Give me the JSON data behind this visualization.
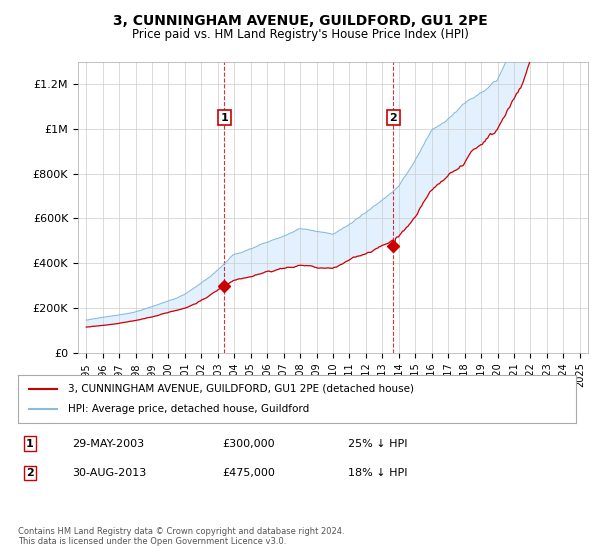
{
  "title": "3, CUNNINGHAM AVENUE, GUILDFORD, GU1 2PE",
  "subtitle": "Price paid vs. HM Land Registry's House Price Index (HPI)",
  "legend_line1": "3, CUNNINGHAM AVENUE, GUILDFORD, GU1 2PE (detached house)",
  "legend_line2": "HPI: Average price, detached house, Guildford",
  "annotation1_label": "1",
  "annotation1_date": "29-MAY-2003",
  "annotation1_price": "£300,000",
  "annotation1_hpi": "25% ↓ HPI",
  "annotation1_year": 2003.4,
  "annotation1_value": 300000,
  "annotation2_label": "2",
  "annotation2_date": "30-AUG-2013",
  "annotation2_price": "£475,000",
  "annotation2_hpi": "18% ↓ HPI",
  "annotation2_year": 2013.66,
  "annotation2_value": 475000,
  "price_color": "#cc0000",
  "hpi_color": "#88bbdd",
  "shading_color": "#ddeeff",
  "dashed_line_color": "#cc0000",
  "background_color": "#ffffff",
  "ylim": [
    0,
    1300000
  ],
  "xlim_start": 1994.5,
  "xlim_end": 2025.5,
  "footer": "Contains HM Land Registry data © Crown copyright and database right 2024.\nThis data is licensed under the Open Government Licence v3.0.",
  "yticks": [
    0,
    200000,
    400000,
    600000,
    800000,
    1000000,
    1200000
  ],
  "ytick_labels": [
    "£0",
    "£200K",
    "£400K",
    "£600K",
    "£800K",
    "£1M",
    "£1.2M"
  ]
}
